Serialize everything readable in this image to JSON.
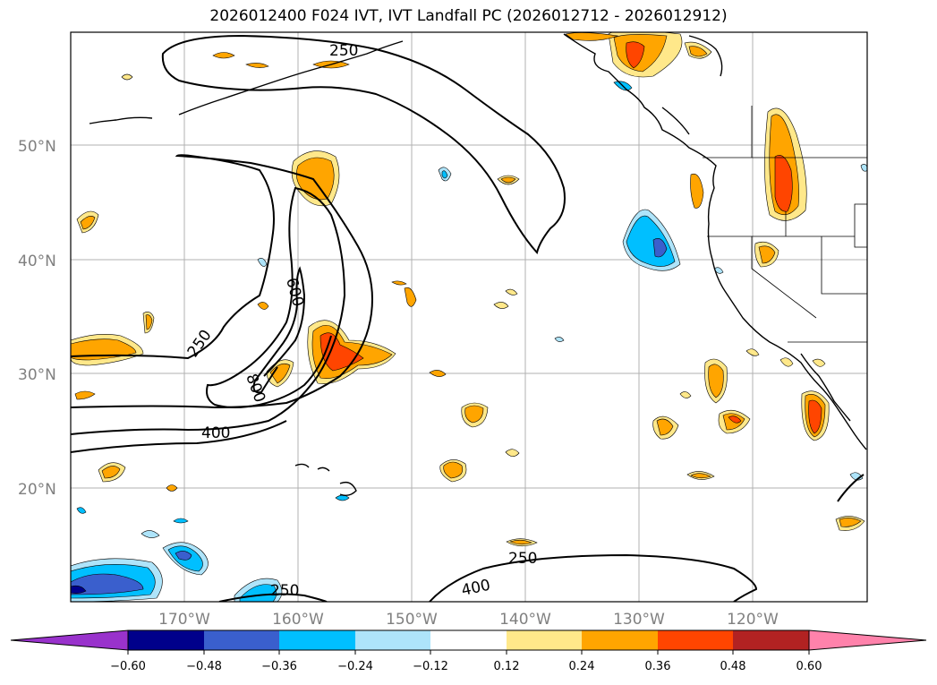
{
  "title": "2026012400 F024 IVT, IVT Landfall PC (2026012712 - 2026012912)",
  "map": {
    "lat_labels": [
      "50°N",
      "40°N",
      "30°N",
      "20°N"
    ],
    "lon_labels": [
      "170°W",
      "160°W",
      "150°W",
      "140°W",
      "130°W",
      "120°W"
    ],
    "contour_labels": [
      "250",
      "600",
      "250",
      "800",
      "400",
      "250",
      "400",
      "250"
    ]
  },
  "colorbar": {
    "tick_labels": [
      "−0.60",
      "−0.48",
      "−0.36",
      "−0.24",
      "−0.12",
      "0.12",
      "0.24",
      "0.36",
      "0.48",
      "0.60"
    ],
    "colors": [
      "#9932CC",
      "#00008B",
      "#3A5FCD",
      "#00BFFF",
      "#AEE4FA",
      "#FFFFFF",
      "#FFE88A",
      "#FFA500",
      "#FF4500",
      "#B22222",
      "#FF82AB"
    ]
  }
}
